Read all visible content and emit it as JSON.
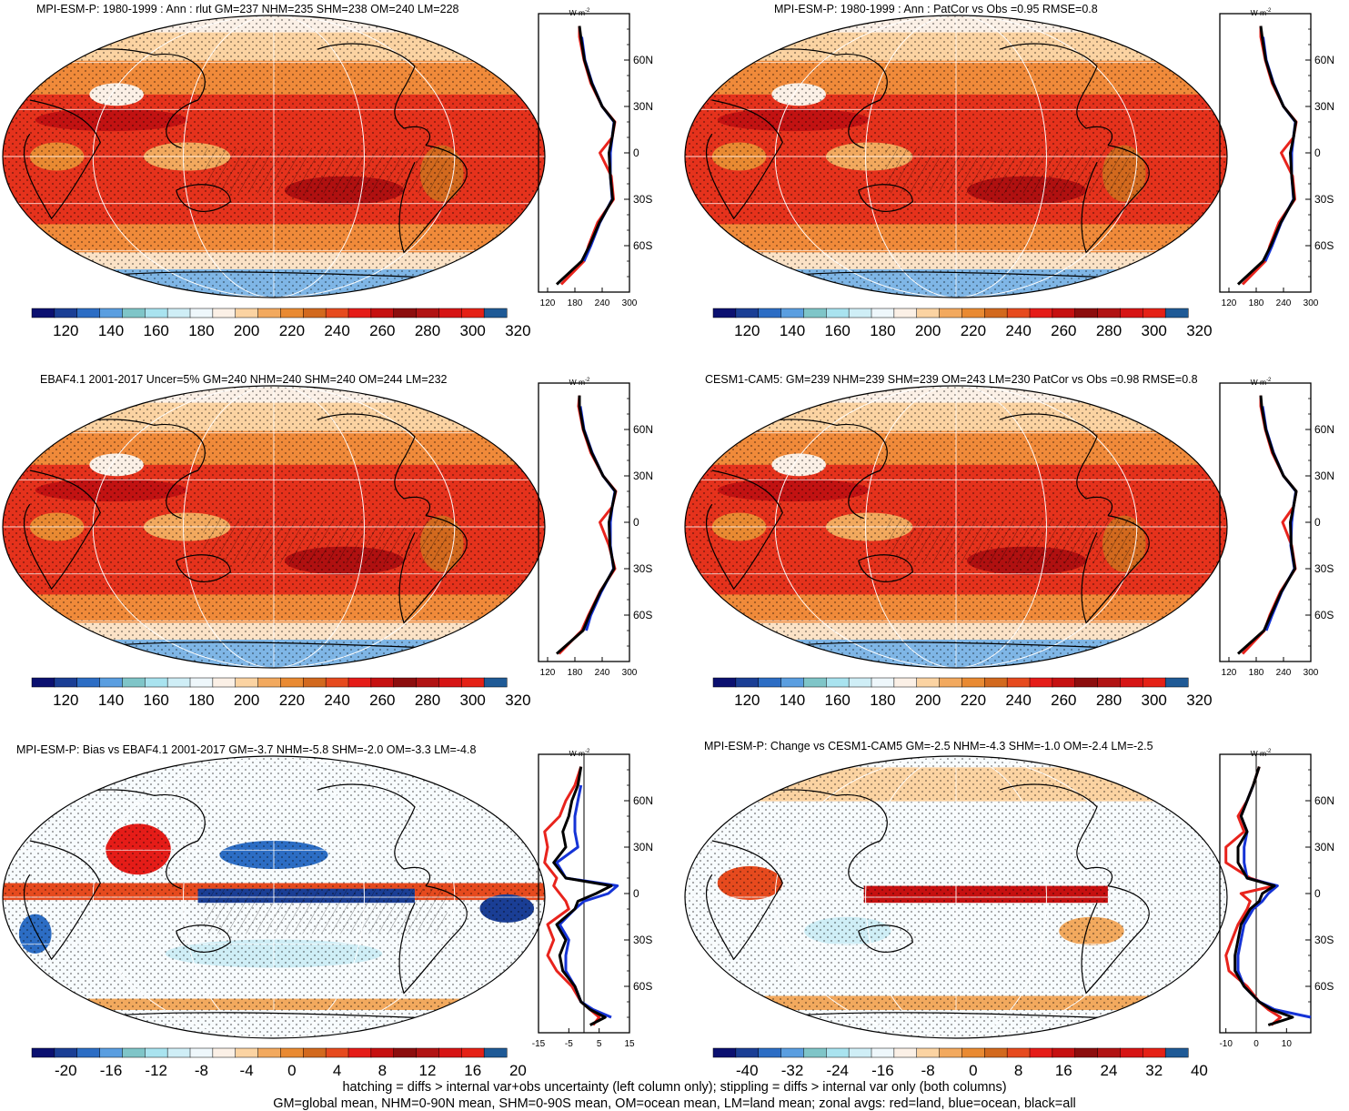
{
  "figure": {
    "footer_lines": [
      "hatching = diffs > internal var+obs uncertainty (left column only); stippling = diffs > internal var only (both columns)",
      "GM=global mean, NHM=0-90N mean, SHM=0-90S mean, OM=ocean mean, LM=land mean; zonal avgs: red=land, blue=ocean, black=all"
    ]
  },
  "colors": {
    "land": "#e8231c",
    "ocean": "#1533d6",
    "all": "#000000"
  },
  "palettes": {
    "absolute": [
      "#0b1070",
      "#1a3e95",
      "#2c6dc4",
      "#5a9ee0",
      "#7fc5c8",
      "#a9e3ef",
      "#cfeef6",
      "#eef7fb",
      "#fbf0e6",
      "#fbd3a2",
      "#f2a95e",
      "#e98a32",
      "#d2691e",
      "#e64a1e",
      "#e51c18",
      "#c61010",
      "#8c0d0d",
      "#b11313",
      "#d61414",
      "#e52116",
      "#1f5a96"
    ],
    "bias": [
      "#0b1070",
      "#1a3e95",
      "#2c6dc4",
      "#5a9ee0",
      "#7fc5c8",
      "#a9e3ef",
      "#cfeef6",
      "#eef7fb",
      "#fbf0e6",
      "#fbd3a2",
      "#f2a95e",
      "#e98a32",
      "#d2691e",
      "#e64a1e",
      "#e51c18",
      "#c61010",
      "#8c0d0d",
      "#b11313",
      "#d61414",
      "#e52116",
      "#1f5a96"
    ]
  },
  "chart_data": [
    {
      "id": "p1",
      "type": "heatmap",
      "title": "MPI-ESM-P: 1980-1999 : Ann : rlut GM=237 NHM=235 SHM=238 OM=240 LM=228",
      "colorbar": {
        "levels": [
          "120",
          "140",
          "160",
          "180",
          "200",
          "220",
          "240",
          "260",
          "280",
          "300",
          "320"
        ]
      },
      "zonal": {
        "unit": "W m",
        "unit_exp": "-2",
        "xlim": [
          100,
          300
        ],
        "xticks": [
          "120",
          "180",
          "240",
          "300"
        ],
        "yticks": [
          "60N",
          "30N",
          "0",
          "30S",
          "60S"
        ],
        "lat": [
          -85,
          -70,
          -60,
          -45,
          -30,
          -15,
          0,
          10,
          20,
          30,
          45,
          60,
          75,
          82
        ],
        "land": [
          150,
          200,
          210,
          230,
          265,
          260,
          235,
          262,
          268,
          240,
          215,
          200,
          190,
          190
        ],
        "ocean": [
          null,
          200,
          215,
          235,
          262,
          258,
          258,
          262,
          266,
          240,
          218,
          202,
          195,
          null
        ],
        "all": [
          140,
          195,
          212,
          234,
          263,
          258,
          255,
          262,
          267,
          240,
          217,
          201,
          193,
          190
        ]
      }
    },
    {
      "id": "p2",
      "type": "heatmap",
      "title": "MPI-ESM-P: 1980-1999 : Ann : PatCor vs Obs =0.95 RMSE=0.8",
      "colorbar": {
        "levels": [
          "120",
          "140",
          "160",
          "180",
          "200",
          "220",
          "240",
          "260",
          "280",
          "300",
          "320"
        ]
      },
      "zonal": {
        "unit": "W m",
        "unit_exp": "-2",
        "xlim": [
          100,
          300
        ],
        "xticks": [
          "120",
          "180",
          "240",
          "300"
        ],
        "yticks": [
          "60N",
          "30N",
          "0",
          "30S",
          "60S"
        ],
        "lat": [
          -85,
          -70,
          -60,
          -45,
          -30,
          -15,
          0,
          10,
          20,
          30,
          45,
          60,
          75,
          82
        ],
        "land": [
          150,
          200,
          210,
          230,
          265,
          260,
          235,
          262,
          268,
          240,
          215,
          200,
          190,
          190
        ],
        "ocean": [
          null,
          200,
          215,
          235,
          262,
          258,
          258,
          262,
          266,
          240,
          218,
          202,
          195,
          null
        ],
        "all": [
          140,
          195,
          212,
          234,
          263,
          258,
          255,
          262,
          267,
          240,
          217,
          201,
          193,
          190
        ]
      }
    },
    {
      "id": "p3",
      "type": "heatmap",
      "title": "EBAF4.1 2001-2017 Uncer=5% GM=240 NHM=240 SHM=240 OM=244 LM=232",
      "colorbar": {
        "levels": [
          "120",
          "140",
          "160",
          "180",
          "200",
          "220",
          "240",
          "260",
          "280",
          "300",
          "320"
        ]
      },
      "zonal": {
        "unit": "W m",
        "unit_exp": "-2",
        "xlim": [
          100,
          300
        ],
        "xticks": [
          "120",
          "180",
          "240",
          "300"
        ],
        "yticks": [
          "60N",
          "30N",
          "0",
          "30S",
          "60S"
        ],
        "lat": [
          -85,
          -70,
          -60,
          -45,
          -30,
          -15,
          0,
          10,
          20,
          30,
          45,
          60,
          75,
          82
        ],
        "land": [
          145,
          195,
          210,
          235,
          268,
          255,
          235,
          262,
          270,
          242,
          215,
          198,
          188,
          190
        ],
        "ocean": [
          null,
          205,
          215,
          238,
          265,
          258,
          258,
          262,
          268,
          242,
          218,
          200,
          192,
          null
        ],
        "all": [
          140,
          198,
          212,
          236,
          266,
          257,
          255,
          262,
          269,
          242,
          217,
          199,
          190,
          190
        ]
      }
    },
    {
      "id": "p4",
      "type": "heatmap",
      "title": "CESM1-CAM5: GM=239 NHM=239 SHM=239 OM=243 LM=230 PatCor vs Obs =0.98 RMSE=0.8",
      "colorbar": {
        "levels": [
          "120",
          "140",
          "160",
          "180",
          "200",
          "220",
          "240",
          "260",
          "280",
          "300",
          "320"
        ]
      },
      "zonal": {
        "unit": "W m",
        "unit_exp": "-2",
        "xlim": [
          100,
          300
        ],
        "xticks": [
          "120",
          "180",
          "240",
          "300"
        ],
        "yticks": [
          "60N",
          "30N",
          "0",
          "30S",
          "60S"
        ],
        "lat": [
          -85,
          -70,
          -60,
          -45,
          -30,
          -15,
          0,
          10,
          20,
          30,
          45,
          60,
          75,
          82
        ],
        "land": [
          150,
          198,
          210,
          233,
          266,
          258,
          238,
          262,
          268,
          240,
          215,
          200,
          190,
          190
        ],
        "ocean": [
          null,
          202,
          215,
          236,
          264,
          256,
          258,
          262,
          267,
          240,
          218,
          202,
          194,
          null
        ],
        "all": [
          140,
          197,
          212,
          235,
          265,
          257,
          255,
          262,
          268,
          240,
          217,
          201,
          192,
          190
        ]
      }
    },
    {
      "id": "p5",
      "type": "heatmap",
      "title": "MPI-ESM-P: Bias vs EBAF4.1 2001-2017 GM=-3.7 NHM=-5.8 SHM=-2.0 OM=-3.3 LM=-4.8",
      "colorbar": {
        "levels": [
          "-20",
          "-16",
          "-12",
          "-8",
          "-4",
          "0",
          "4",
          "8",
          "12",
          "16",
          "20"
        ]
      },
      "zonal": {
        "unit": "W m",
        "unit_exp": "-2",
        "xlim": [
          -15,
          15
        ],
        "xticks": [
          "-15",
          "-5",
          "5",
          "15"
        ],
        "zero_line": 0,
        "yticks": [
          "60N",
          "30N",
          "0",
          "30S",
          "60S"
        ],
        "lat": [
          -85,
          -80,
          -75,
          -70,
          -60,
          -50,
          -40,
          -30,
          -20,
          -10,
          -5,
          0,
          5,
          10,
          20,
          30,
          40,
          50,
          60,
          70,
          82
        ],
        "land": [
          3,
          5,
          2,
          -1,
          -4,
          -9,
          -12,
          -10,
          -12,
          -5,
          -6,
          -8,
          -10,
          -9,
          -13,
          -12,
          -13,
          -8,
          -6,
          -3,
          -1
        ],
        "ocean": [
          null,
          9,
          3,
          -1,
          -3,
          -6,
          -6,
          -5,
          -8,
          -3,
          0,
          8,
          11,
          -6,
          -9,
          -2,
          -3,
          -3,
          -2,
          -1,
          null
        ],
        "all": [
          2,
          7,
          2,
          -1,
          -3,
          -7,
          -8,
          -6,
          -9,
          -3,
          -2,
          4,
          9,
          -6,
          -10,
          -6,
          -7,
          -5,
          -4,
          -2,
          -1
        ]
      }
    },
    {
      "id": "p6",
      "type": "heatmap",
      "title": "MPI-ESM-P: Change vs CESM1-CAM5 GM=-2.5 NHM=-4.3 SHM=-1.0 OM=-2.4 LM=-2.5",
      "colorbar": {
        "levels": [
          "-40",
          "-32",
          "-24",
          "-16",
          "-8",
          "0",
          "8",
          "16",
          "24",
          "32",
          "40"
        ]
      },
      "zonal": {
        "unit": "W m",
        "unit_exp": "-2",
        "xlim": [
          -12,
          18
        ],
        "xticks": [
          "-10",
          "0",
          "10"
        ],
        "zero_line": 0,
        "yticks": [
          "60N",
          "30N",
          "0",
          "30S",
          "60S"
        ],
        "lat": [
          -85,
          -80,
          -75,
          -70,
          -60,
          -50,
          -40,
          -30,
          -20,
          -10,
          -5,
          0,
          5,
          10,
          20,
          30,
          40,
          50,
          60,
          70,
          82
        ],
        "land": [
          5,
          8,
          4,
          1,
          -3,
          -9,
          -10,
          -8,
          -6,
          -3,
          -2,
          -5,
          6,
          -2,
          -10,
          -10,
          -4,
          -6,
          -3,
          -1,
          1
        ],
        "ocean": [
          null,
          18,
          6,
          1,
          -4,
          -6,
          -6,
          -5,
          -4,
          -1,
          2,
          4,
          7,
          -3,
          -4,
          -4,
          -3,
          -5,
          -3,
          -1,
          null
        ],
        "all": [
          4,
          12,
          5,
          1,
          -4,
          -7,
          -7,
          -6,
          -5,
          -2,
          1,
          2,
          6,
          -3,
          -6,
          -6,
          -3,
          -5,
          -3,
          -1,
          1
        ]
      }
    }
  ]
}
